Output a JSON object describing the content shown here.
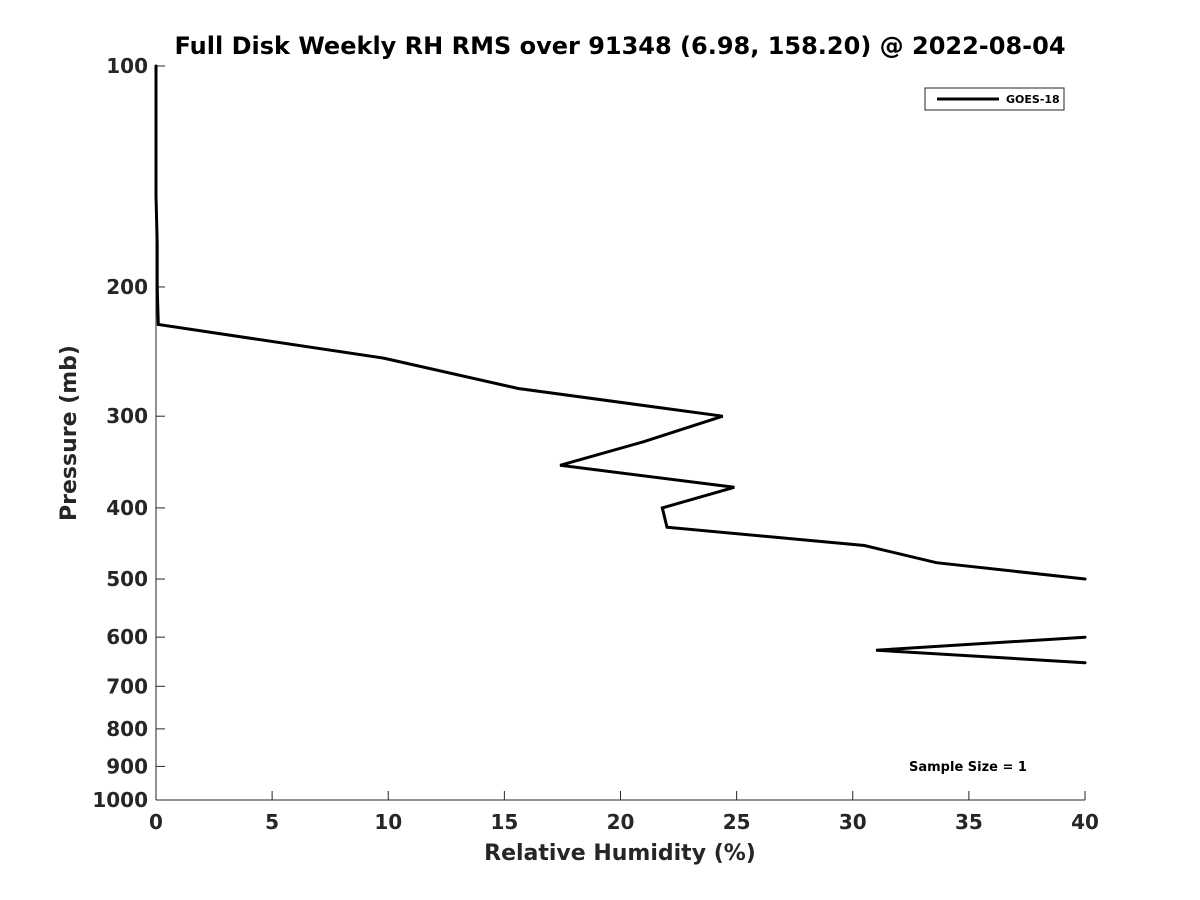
{
  "chart_data": {
    "type": "line",
    "title": "Full Disk Weekly RH RMS over 91348 (6.98, 158.20) @ 2022-08-04",
    "xlabel": "Relative Humidity (%)",
    "ylabel": "Pressure (mb)",
    "xlim": [
      0,
      40
    ],
    "ylim": [
      100,
      1000
    ],
    "yscale": "log",
    "y_reversed": true,
    "grid": false,
    "legend_position": "top-right",
    "x_ticks": [
      0,
      5,
      10,
      15,
      20,
      25,
      30,
      35,
      40
    ],
    "y_ticks": [
      100,
      200,
      300,
      400,
      500,
      600,
      700,
      800,
      900,
      1000
    ],
    "series": [
      {
        "name": "GOES-18",
        "color": "#000000",
        "segments": [
          [
            {
              "x": 0.0,
              "p": 100
            },
            {
              "x": 0.0,
              "p": 125
            },
            {
              "x": 0.0,
              "p": 150
            },
            {
              "x": 0.05,
              "p": 175
            },
            {
              "x": 0.05,
              "p": 200
            },
            {
              "x": 0.1,
              "p": 225
            },
            {
              "x": 9.8,
              "p": 250
            },
            {
              "x": 15.6,
              "p": 275
            },
            {
              "x": 24.4,
              "p": 300
            },
            {
              "x": 21.0,
              "p": 325
            },
            {
              "x": 17.4,
              "p": 350
            },
            {
              "x": 24.9,
              "p": 375
            },
            {
              "x": 21.8,
              "p": 400
            },
            {
              "x": 22.0,
              "p": 425
            },
            {
              "x": 30.5,
              "p": 450
            },
            {
              "x": 33.6,
              "p": 475
            },
            {
              "x": 40.0,
              "p": 500
            }
          ],
          [
            {
              "x": 40.0,
              "p": 600
            },
            {
              "x": 31.0,
              "p": 625
            },
            {
              "x": 40.0,
              "p": 650
            }
          ]
        ]
      }
    ],
    "annotations": [
      "Sample Size = 1"
    ]
  }
}
